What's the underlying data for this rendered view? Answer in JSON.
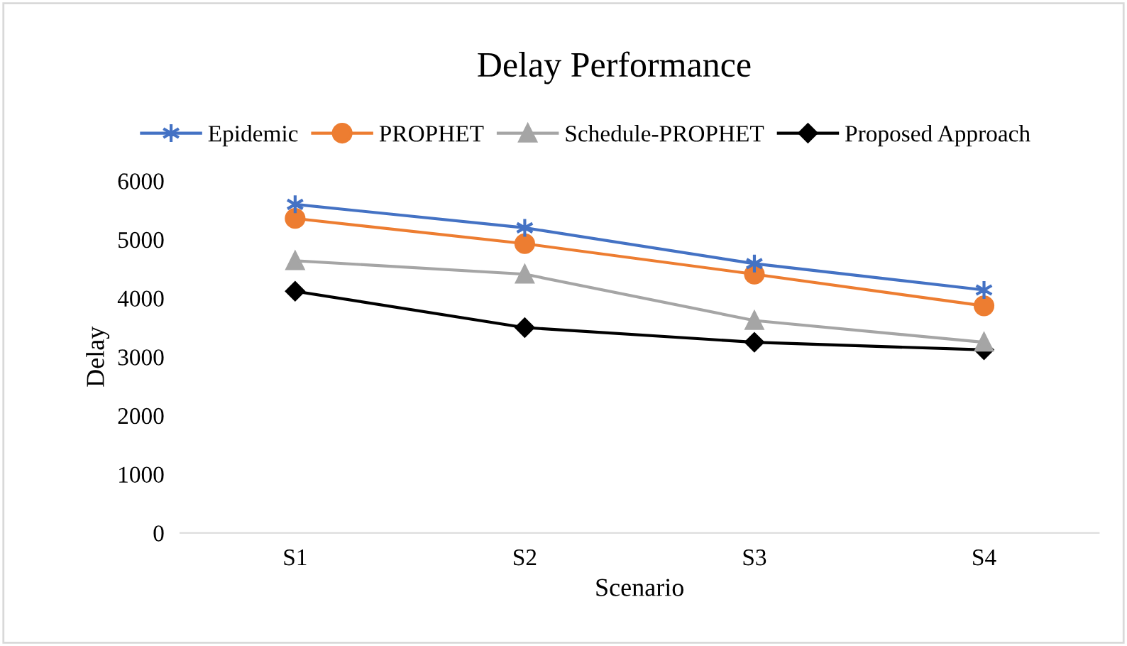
{
  "chart_data": {
    "type": "line",
    "title": "Delay Performance",
    "xlabel": "Scenario",
    "ylabel": "Delay",
    "categories": [
      "S1",
      "S2",
      "S3",
      "S4"
    ],
    "series": [
      {
        "name": "Epidemic",
        "color": "#4472c4",
        "marker": "cross",
        "values": [
          5600,
          5200,
          4590,
          4140
        ]
      },
      {
        "name": "PROPHET",
        "color": "#ed7d31",
        "marker": "circle",
        "values": [
          5360,
          4930,
          4410,
          3870
        ]
      },
      {
        "name": "Schedule-PROPHET",
        "color": "#a5a5a5",
        "marker": "triangle",
        "values": [
          4640,
          4410,
          3620,
          3250
        ]
      },
      {
        "name": "Proposed Approach",
        "color": "#000000",
        "marker": "diamond",
        "values": [
          4120,
          3500,
          3250,
          3120
        ]
      }
    ],
    "ylim": [
      0,
      6000
    ],
    "yticks": [
      0,
      1000,
      2000,
      3000,
      4000,
      5000,
      6000
    ],
    "grid": false,
    "legend": "top"
  }
}
